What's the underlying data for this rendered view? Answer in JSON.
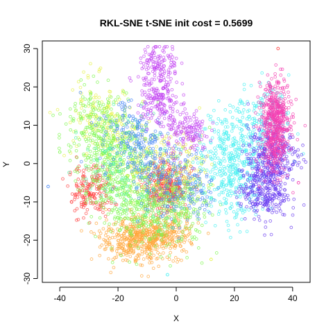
{
  "chart_data": {
    "type": "scatter",
    "title": "RKL-SNE t-SNE init cost = 0.5699",
    "xlabel": "X",
    "ylabel": "Y",
    "xlim": [
      -46,
      46
    ],
    "ylim": [
      -31,
      32
    ],
    "xticks": [
      -40,
      -20,
      0,
      20,
      40
    ],
    "yticks": [
      -30,
      -20,
      -10,
      0,
      10,
      20,
      30
    ],
    "grid": false,
    "legend": "none",
    "marker": "open-circle",
    "clusters": [
      {
        "color": "#FF4040",
        "centers": [
          [
            -30,
            -7
          ],
          [
            -5,
            -5
          ],
          [
            -2,
            -7
          ]
        ],
        "spread": [
          3.5,
          3.2
        ],
        "count": 520
      },
      {
        "color": "#FFA53A",
        "centers": [
          [
            -10,
            -20
          ],
          [
            -4,
            -18
          ],
          [
            -16,
            -20
          ]
        ],
        "spread": [
          5.5,
          2.8
        ],
        "count": 620
      },
      {
        "color": "#E5F24A",
        "centers": [
          [
            -28,
            12
          ],
          [
            -18,
            6
          ],
          [
            -10,
            -2
          ],
          [
            2,
            -2
          ]
        ],
        "spread": [
          5,
          5
        ],
        "count": 460
      },
      {
        "color": "#7DF74F",
        "centers": [
          [
            -22,
            -2
          ],
          [
            -14,
            -12
          ],
          [
            -26,
            10
          ],
          [
            0,
            -12
          ]
        ],
        "spread": [
          6,
          5
        ],
        "count": 900
      },
      {
        "color": "#4DF2A6",
        "centers": [
          [
            -20,
            0
          ],
          [
            -8,
            -4
          ]
        ],
        "spread": [
          6,
          6
        ],
        "count": 200
      },
      {
        "color": "#48F0F2",
        "centers": [
          [
            20,
            -6
          ],
          [
            18,
            4
          ],
          [
            30,
            10
          ]
        ],
        "spread": [
          4.5,
          5.5
        ],
        "count": 620
      },
      {
        "color": "#4C8AF5",
        "centers": [
          [
            -16,
            8
          ],
          [
            -8,
            0
          ],
          [
            4,
            -6
          ]
        ],
        "spread": [
          5,
          5
        ],
        "count": 420
      },
      {
        "color": "#6A3CF0",
        "centers": [
          [
            30,
            -7
          ],
          [
            33,
            2
          ]
        ],
        "spread": [
          4.2,
          3.8
        ],
        "count": 560
      },
      {
        "color": "#C346F2",
        "centers": [
          [
            -6,
            25
          ],
          [
            -6,
            16
          ],
          [
            4,
            8
          ]
        ],
        "spread": [
          3.5,
          3
        ],
        "count": 430
      },
      {
        "color": "#F43FB2",
        "centers": [
          [
            34,
            14
          ],
          [
            34,
            6
          ]
        ],
        "spread": [
          2.4,
          4.5
        ],
        "count": 560
      }
    ],
    "outliers": [
      [
        35,
        30
      ],
      [
        -40,
        3
      ],
      [
        -44,
        -6
      ],
      [
        42,
        -5
      ],
      [
        12,
        -25
      ],
      [
        -3,
        -29
      ]
    ]
  }
}
